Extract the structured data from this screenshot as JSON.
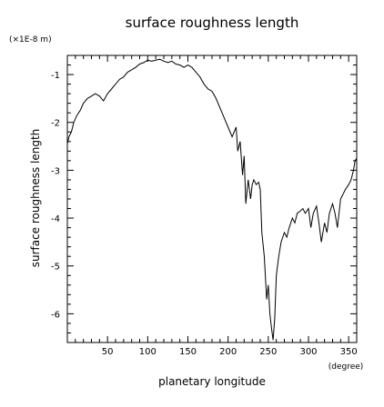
{
  "chart_data": {
    "type": "line",
    "title": "surface roughness length",
    "scale_label": "(×1E-8 m)",
    "ylabel": "surface roughness length",
    "xlabel": "planetary longitude",
    "xunit": "(degree)",
    "xlim": [
      0,
      360
    ],
    "ylim": [
      -6.6,
      -0.6
    ],
    "xticks": [
      50,
      100,
      150,
      200,
      250,
      300,
      350
    ],
    "yticks": [
      -1,
      -2,
      -3,
      -4,
      -5,
      -6
    ],
    "grid": false,
    "series": [
      {
        "x": [
          0,
          2,
          5,
          8,
          12,
          16,
          20,
          25,
          30,
          35,
          40,
          45,
          50,
          55,
          60,
          65,
          70,
          75,
          80,
          85,
          90,
          95,
          100,
          105,
          110,
          115,
          120,
          125,
          130,
          135,
          140,
          145,
          150,
          155,
          160,
          165,
          170,
          175,
          180,
          185,
          190,
          195,
          200,
          205,
          210,
          212,
          215,
          218,
          220,
          222,
          225,
          228,
          230,
          232,
          235,
          238,
          240,
          242,
          245,
          248,
          250,
          252,
          254,
          256,
          258,
          260,
          263,
          266,
          270,
          273,
          276,
          280,
          283,
          286,
          290,
          293,
          296,
          300,
          303,
          306,
          310,
          313,
          316,
          320,
          323,
          326,
          330,
          333,
          336,
          340,
          343,
          346,
          350,
          353,
          356,
          358,
          360
        ],
        "y": [
          -2.45,
          -2.3,
          -2.2,
          -2.0,
          -1.85,
          -1.75,
          -1.6,
          -1.5,
          -1.45,
          -1.4,
          -1.45,
          -1.55,
          -1.4,
          -1.3,
          -1.2,
          -1.1,
          -1.05,
          -0.95,
          -0.9,
          -0.85,
          -0.78,
          -0.75,
          -0.7,
          -0.72,
          -0.7,
          -0.68,
          -0.72,
          -0.75,
          -0.72,
          -0.78,
          -0.8,
          -0.85,
          -0.8,
          -0.85,
          -0.95,
          -1.05,
          -1.2,
          -1.3,
          -1.35,
          -1.5,
          -1.7,
          -1.9,
          -2.1,
          -2.3,
          -2.1,
          -2.6,
          -2.4,
          -3.1,
          -2.7,
          -3.7,
          -3.2,
          -3.6,
          -3.3,
          -3.2,
          -3.3,
          -3.25,
          -3.4,
          -4.3,
          -4.8,
          -5.7,
          -5.4,
          -6.0,
          -6.3,
          -6.55,
          -6.1,
          -5.2,
          -4.8,
          -4.5,
          -4.3,
          -4.4,
          -4.2,
          -4.0,
          -4.1,
          -3.9,
          -3.85,
          -3.8,
          -3.9,
          -3.8,
          -4.2,
          -3.9,
          -3.75,
          -4.1,
          -4.5,
          -4.1,
          -4.3,
          -3.9,
          -3.7,
          -3.9,
          -4.2,
          -3.6,
          -3.5,
          -3.4,
          -3.3,
          -3.2,
          -3.0,
          -2.8,
          -2.75
        ]
      }
    ]
  }
}
